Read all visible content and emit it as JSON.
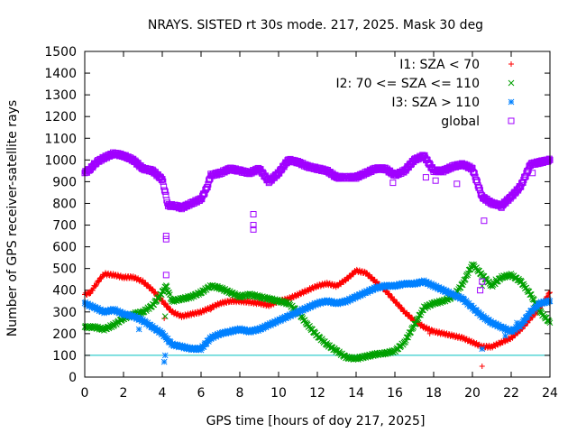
{
  "chart_data": {
    "type": "scatter",
    "title": "NRAYS. SISTED rt 30s mode. 217, 2025. Mask 30 deg",
    "xlabel": "GPS time [hours of doy 217, 2025]",
    "ylabel": "Number of GPS receiver-satellite rays",
    "xlim": [
      0,
      24
    ],
    "ylim": [
      0,
      1500
    ],
    "x_ticks": [
      "0",
      "2",
      "4",
      "6",
      "8",
      "10",
      "12",
      "14",
      "16",
      "18",
      "20",
      "22",
      "24"
    ],
    "y_ticks": [
      "0",
      "100",
      "200",
      "300",
      "400",
      "500",
      "600",
      "700",
      "800",
      "900",
      "1000",
      "1100",
      "1200",
      "1300",
      "1400",
      "1500"
    ],
    "legend_position": "top-right",
    "threshold_line": {
      "y": 100,
      "color": "#00c0c0"
    },
    "series": [
      {
        "name": "I1: SZA < 70",
        "marker": "+",
        "color": "#ff0000",
        "x": [
          0,
          0.3,
          0.6,
          1.0,
          1.5,
          2.0,
          2.5,
          3.0,
          3.5,
          4.0,
          4.5,
          5.0,
          5.5,
          6.0,
          6.5,
          7.0,
          7.5,
          8.0,
          8.5,
          9.0,
          9.5,
          10.0,
          10.5,
          11.0,
          11.5,
          12.0,
          12.5,
          13.0,
          13.5,
          14.0,
          14.5,
          15.0,
          15.5,
          16.0,
          16.5,
          17.0,
          17.5,
          18.0,
          18.5,
          19.0,
          19.5,
          20.0,
          20.5,
          21.0,
          21.5,
          22.0,
          22.5,
          23.0,
          23.5,
          24.0
        ],
        "values": [
          380,
          390,
          430,
          475,
          470,
          460,
          460,
          440,
          400,
          350,
          300,
          280,
          290,
          300,
          320,
          340,
          350,
          350,
          345,
          340,
          330,
          350,
          360,
          380,
          400,
          420,
          430,
          420,
          450,
          490,
          480,
          440,
          400,
          350,
          300,
          260,
          230,
          210,
          200,
          190,
          180,
          160,
          140,
          140,
          160,
          180,
          220,
          270,
          320,
          390
        ]
      },
      {
        "name": "I2: 70 <= SZA <= 110",
        "marker": "x",
        "color": "#00a000",
        "x": [
          0,
          0.5,
          1.0,
          1.5,
          2.0,
          2.5,
          3.0,
          3.5,
          4.0,
          4.2,
          4.5,
          5.0,
          5.5,
          6.0,
          6.5,
          7.0,
          7.5,
          8.0,
          8.5,
          9.0,
          9.5,
          10.0,
          10.5,
          11.0,
          11.5,
          12.0,
          12.5,
          13.0,
          13.5,
          14.0,
          14.5,
          15.0,
          15.5,
          16.0,
          16.5,
          17.0,
          17.5,
          18.0,
          18.5,
          19.0,
          19.5,
          20.0,
          20.5,
          21.0,
          21.5,
          22.0,
          22.5,
          23.0,
          23.5,
          24.0
        ],
        "values": [
          230,
          230,
          220,
          240,
          270,
          290,
          300,
          330,
          390,
          420,
          350,
          360,
          370,
          390,
          420,
          410,
          390,
          370,
          380,
          370,
          360,
          350,
          340,
          300,
          240,
          190,
          150,
          120,
          90,
          85,
          95,
          105,
          110,
          120,
          160,
          240,
          320,
          340,
          350,
          370,
          430,
          520,
          470,
          420,
          460,
          470,
          440,
          380,
          300,
          250
        ]
      },
      {
        "name": "I3: SZA > 110",
        "marker": "*",
        "color": "#0080ff",
        "x": [
          0,
          0.5,
          1.0,
          1.5,
          2.0,
          2.5,
          3.0,
          3.5,
          4.0,
          4.5,
          5.0,
          5.5,
          6.0,
          6.5,
          7.0,
          7.5,
          8.0,
          8.5,
          9.0,
          9.5,
          10.0,
          10.5,
          11.0,
          11.5,
          12.0,
          12.5,
          13.0,
          13.5,
          14.0,
          14.5,
          15.0,
          15.5,
          16.0,
          16.5,
          17.0,
          17.5,
          18.0,
          18.5,
          19.0,
          19.5,
          20.0,
          20.5,
          21.0,
          21.5,
          22.0,
          22.5,
          23.0,
          23.5,
          24.0
        ],
        "values": [
          340,
          320,
          300,
          310,
          290,
          280,
          260,
          230,
          200,
          150,
          140,
          130,
          130,
          180,
          200,
          210,
          220,
          210,
          220,
          240,
          260,
          280,
          300,
          320,
          340,
          350,
          340,
          350,
          370,
          390,
          410,
          420,
          420,
          430,
          430,
          440,
          420,
          400,
          380,
          360,
          320,
          280,
          250,
          230,
          210,
          240,
          300,
          340,
          350
        ]
      },
      {
        "name": "global",
        "marker": "square",
        "color": "#a000ff",
        "x": [
          0,
          0.3,
          0.6,
          1.0,
          1.5,
          2.0,
          2.5,
          3.0,
          3.5,
          4.0,
          4.3,
          4.6,
          5.0,
          5.5,
          6.0,
          6.3,
          6.5,
          7.0,
          7.5,
          8.0,
          8.5,
          9.0,
          9.5,
          10.0,
          10.5,
          11.0,
          11.5,
          12.0,
          12.5,
          13.0,
          13.5,
          14.0,
          14.5,
          15.0,
          15.5,
          16.0,
          16.5,
          17.0,
          17.5,
          18.0,
          18.5,
          19.0,
          19.5,
          20.0,
          20.5,
          21.0,
          21.5,
          22.0,
          22.5,
          23.0,
          23.5,
          24.0
        ],
        "values": [
          940,
          960,
          990,
          1010,
          1030,
          1020,
          1000,
          960,
          950,
          910,
          790,
          790,
          780,
          800,
          820,
          870,
          930,
          940,
          960,
          950,
          940,
          960,
          900,
          940,
          1000,
          990,
          970,
          960,
          950,
          920,
          920,
          920,
          940,
          960,
          960,
          930,
          950,
          1000,
          1020,
          950,
          950,
          970,
          980,
          960,
          830,
          800,
          790,
          830,
          880,
          980,
          990,
          1000
        ]
      }
    ],
    "outliers": {
      "I1: SZA < 70": {
        "x": [
          4.1,
          6.5,
          17.8,
          20.5,
          23.2
        ],
        "y": [
          270,
          310,
          200,
          50,
          320
        ]
      },
      "I2: 70 <= SZA <= 110": {
        "x": [
          4.15,
          20.5,
          21.2
        ],
        "y": [
          280,
          420,
          450
        ]
      },
      "I3: SZA > 110": {
        "x": [
          4.1,
          4.15,
          2.8,
          20.5,
          21.7,
          22.3
        ],
        "y": [
          70,
          100,
          220,
          130,
          190,
          250
        ]
      },
      "global": {
        "x": [
          4.2,
          4.2,
          4.2,
          8.7,
          8.7,
          8.7,
          20.4,
          20.5,
          20.6,
          21.5,
          15.9,
          17.6,
          19.2,
          18.1,
          23.1
        ],
        "y": [
          470,
          650,
          635,
          750,
          700,
          680,
          400,
          440,
          720,
          780,
          895,
          920,
          890,
          905,
          940
        ]
      }
    }
  }
}
